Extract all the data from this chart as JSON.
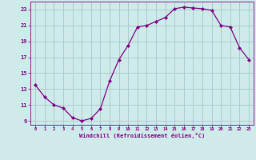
{
  "x": [
    0,
    1,
    2,
    3,
    4,
    5,
    6,
    7,
    8,
    9,
    10,
    11,
    12,
    13,
    14,
    15,
    16,
    17,
    18,
    19,
    20,
    21,
    22,
    23
  ],
  "y": [
    13.5,
    12.0,
    11.0,
    10.6,
    9.4,
    9.0,
    9.3,
    10.5,
    14.0,
    16.7,
    18.5,
    20.8,
    21.0,
    21.5,
    22.0,
    23.1,
    23.3,
    23.2,
    23.1,
    22.9,
    21.0,
    20.8,
    18.2,
    16.7
  ],
  "line_color": "#800080",
  "marker": "D",
  "marker_size": 2,
  "bg_color": "#ceeaea",
  "grid_color": "#aacccc",
  "xlabel": "Windchill (Refroidissement éolien,°C)",
  "xlabel_color": "#800080",
  "tick_color": "#800080",
  "ylim": [
    8.5,
    24
  ],
  "yticks": [
    9,
    11,
    13,
    15,
    17,
    19,
    21,
    23
  ],
  "xlim": [
    -0.5,
    23.5
  ],
  "xticks": [
    0,
    1,
    2,
    3,
    4,
    5,
    6,
    7,
    8,
    9,
    10,
    11,
    12,
    13,
    14,
    15,
    16,
    17,
    18,
    19,
    20,
    21,
    22,
    23
  ]
}
